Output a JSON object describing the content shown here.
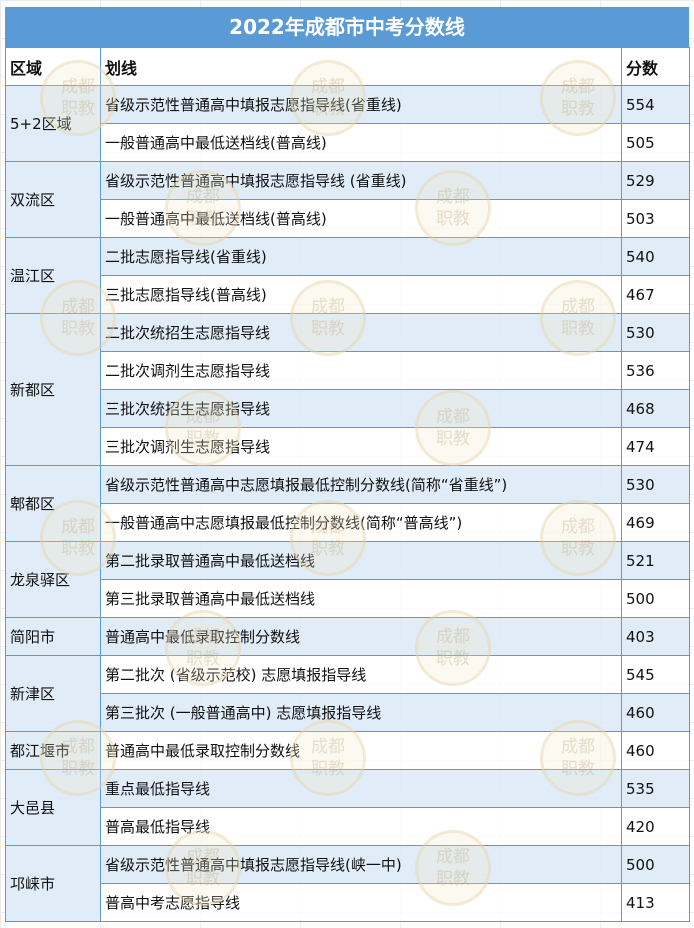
{
  "title": "2022年成都市中考分数线",
  "headers": {
    "region": "区域",
    "line": "划线",
    "score": "分数"
  },
  "watermark": "成都职教",
  "colors": {
    "header_bg": "#5b9bd5",
    "row_tint": "#ddeaf6"
  },
  "groups": [
    {
      "region": "5+2区域",
      "rows": [
        {
          "line": "省级示范性普通高中填报志愿指导线(省重线)",
          "score": "554"
        },
        {
          "line": "一般普通高中最低送档线(普高线)",
          "score": "505"
        }
      ]
    },
    {
      "region": "双流区",
      "rows": [
        {
          "line": "省级示范性普通高中填报志愿指导线 (省重线)",
          "score": "529"
        },
        {
          "line": "一般普通高中最低送档线(普高线)",
          "score": "503"
        }
      ]
    },
    {
      "region": "温江区",
      "rows": [
        {
          "line": "二批志愿指导线(省重线)",
          "score": "540"
        },
        {
          "line": "三批志愿指导线(普高线)",
          "score": "467"
        }
      ]
    },
    {
      "region": "新都区",
      "rows": [
        {
          "line": "二批次统招生志愿指导线",
          "score": "530"
        },
        {
          "line": "二批次调剂生志愿指导线",
          "score": "536"
        },
        {
          "line": "三批次统招生志愿指导线",
          "score": "468"
        },
        {
          "line": "三批次调剂生志愿指导线",
          "score": "474"
        }
      ]
    },
    {
      "region": "郫都区",
      "rows": [
        {
          "line": "省级示范性普通高中志愿填报最低控制分数线(简称“省重线”)",
          "score": "530"
        },
        {
          "line": "一般普通高中志愿填报最低控制分数线(简称“普高线”)",
          "score": "469"
        }
      ]
    },
    {
      "region": "龙泉驿区",
      "rows": [
        {
          "line": "第二批录取普通高中最低送档线",
          "score": "521"
        },
        {
          "line": "第三批录取普通高中最低送档线",
          "score": "500"
        }
      ]
    },
    {
      "region": "简阳市",
      "rows": [
        {
          "line": "普通高中最低录取控制分数线",
          "score": "403"
        }
      ]
    },
    {
      "region": "新津区",
      "rows": [
        {
          "line": "第二批次 (省级示范校) 志愿填报指导线",
          "score": "545"
        },
        {
          "line": "第三批次 (一般普通高中) 志愿填报指导线",
          "score": "460"
        }
      ]
    },
    {
      "region": "都江堰市",
      "rows": [
        {
          "line": "普通高中最低录取控制分数线",
          "score": "460"
        }
      ]
    },
    {
      "region": "大邑县",
      "rows": [
        {
          "line": "重点最低指导线",
          "score": "535"
        },
        {
          "line": "普高最低指导线",
          "score": "420"
        }
      ]
    },
    {
      "region": "邛崃市",
      "rows": [
        {
          "line": "省级示范性普通高中填报志愿指导线(峡一中)",
          "score": "500"
        },
        {
          "line": "普高中考志愿指导线",
          "score": "413"
        }
      ]
    }
  ]
}
